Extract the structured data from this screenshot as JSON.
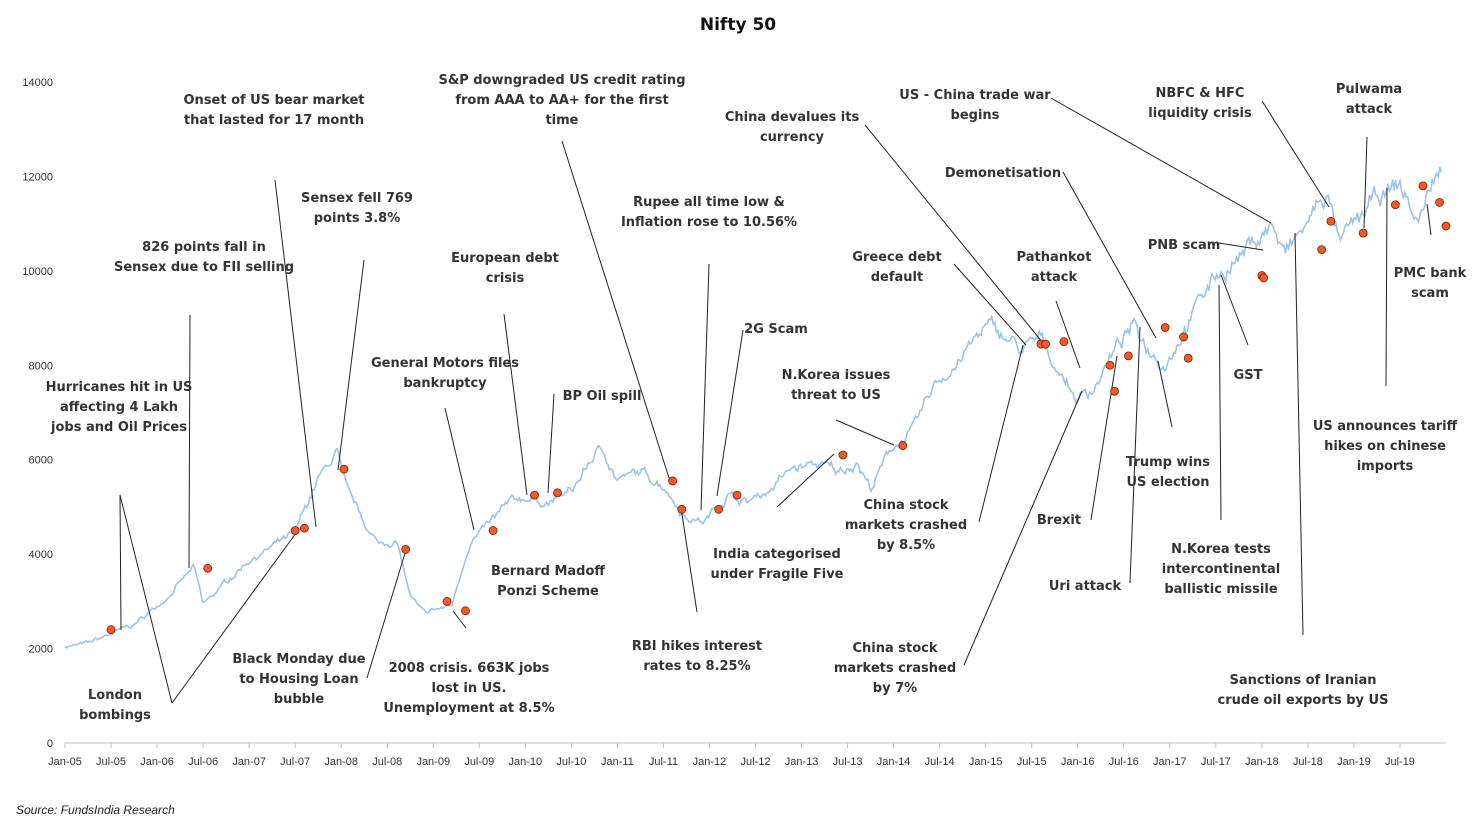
{
  "chart_data": {
    "type": "line",
    "title": "Nifty 50",
    "xlabel": "",
    "ylabel": "",
    "ylim": [
      0,
      14000
    ],
    "yticks": [
      "0",
      "2000",
      "4000",
      "6000",
      "8000",
      "10000",
      "12000",
      "14000"
    ],
    "xticks": [
      "Jan-05",
      "Jul-05",
      "Jan-06",
      "Jul-06",
      "Jan-07",
      "Jul-07",
      "Jan-08",
      "Jul-08",
      "Jan-09",
      "Jul-09",
      "Jan-10",
      "Jul-10",
      "Jan-11",
      "Jul-11",
      "Jan-12",
      "Jul-12",
      "Jan-13",
      "Jul-13",
      "Jan-14",
      "Jul-14",
      "Jan-15",
      "Jul-15",
      "Jan-16",
      "Jul-16",
      "Jan-17",
      "Jul-17",
      "Jan-18",
      "Jul-18",
      "Jan-19",
      "Jul-19"
    ],
    "grid": false,
    "legend": "none",
    "series": [
      {
        "color": "#9dc3e6",
        "x": [
          2005.0,
          2005.25,
          2005.5,
          2005.75,
          2006.0,
          2006.25,
          2006.4,
          2006.5,
          2006.75,
          2007.0,
          2007.2,
          2007.5,
          2007.75,
          2007.85,
          2007.95,
          2008.05,
          2008.2,
          2008.4,
          2008.6,
          2008.75,
          2008.9,
          2009.0,
          2009.2,
          2009.4,
          2009.6,
          2009.8,
          2010.0,
          2010.25,
          2010.5,
          2010.75,
          2010.85,
          2011.0,
          2011.25,
          2011.5,
          2011.75,
          2011.95,
          2012.2,
          2012.4,
          2012.6,
          2012.9,
          2013.2,
          2013.4,
          2013.6,
          2013.75,
          2014.0,
          2014.25,
          2014.45,
          2014.75,
          2015.0,
          2015.2,
          2015.4,
          2015.6,
          2015.8,
          2016.0,
          2016.15,
          2016.4,
          2016.6,
          2016.75,
          2016.95,
          2017.2,
          2017.5,
          2017.75,
          2018.0,
          2018.1,
          2018.25,
          2018.5,
          2018.7,
          2018.85,
          2019.0,
          2019.25,
          2019.5,
          2019.7,
          2019.85,
          2019.95
        ],
        "y": [
          2050,
          2100,
          2300,
          2500,
          2900,
          3400,
          3700,
          2900,
          3400,
          3900,
          4100,
          4400,
          5600,
          5800,
          6200,
          5300,
          4800,
          4200,
          4300,
          3100,
          2700,
          2800,
          2900,
          4300,
          4600,
          5000,
          5200,
          5100,
          5300,
          6100,
          6200,
          5600,
          5700,
          5500,
          4800,
          4700,
          5300,
          5100,
          5300,
          5800,
          5900,
          5700,
          6000,
          5400,
          6300,
          6700,
          7600,
          8200,
          8800,
          8600,
          8300,
          8500,
          7900,
          7300,
          7500,
          8300,
          8800,
          8400,
          8100,
          9000,
          9900,
          10300,
          10800,
          11000,
          10300,
          11000,
          11700,
          10500,
          10900,
          11500,
          11800,
          11000,
          11900,
          12100
        ]
      }
    ],
    "markers": [
      {
        "x": 2005.5,
        "y": 2400
      },
      {
        "x": 2006.55,
        "y": 3700
      },
      {
        "x": 2007.5,
        "y": 4500
      },
      {
        "x": 2007.6,
        "y": 4550
      },
      {
        "x": 2008.03,
        "y": 5800
      },
      {
        "x": 2008.7,
        "y": 4100
      },
      {
        "x": 2009.15,
        "y": 3000
      },
      {
        "x": 2009.35,
        "y": 2800
      },
      {
        "x": 2009.65,
        "y": 4500
      },
      {
        "x": 2010.1,
        "y": 5250
      },
      {
        "x": 2010.35,
        "y": 5300
      },
      {
        "x": 2011.6,
        "y": 5550
      },
      {
        "x": 2011.7,
        "y": 4950
      },
      {
        "x": 2012.1,
        "y": 4950
      },
      {
        "x": 2012.3,
        "y": 5250
      },
      {
        "x": 2013.45,
        "y": 6100
      },
      {
        "x": 2014.1,
        "y": 6300
      },
      {
        "x": 2015.6,
        "y": 8450
      },
      {
        "x": 2015.65,
        "y": 8450
      },
      {
        "x": 2015.85,
        "y": 8500
      },
      {
        "x": 2016.35,
        "y": 8000
      },
      {
        "x": 2016.4,
        "y": 7450
      },
      {
        "x": 2016.55,
        "y": 8200
      },
      {
        "x": 2016.95,
        "y": 8800
      },
      {
        "x": 2017.15,
        "y": 8600
      },
      {
        "x": 2017.2,
        "y": 8150
      },
      {
        "x": 2018.0,
        "y": 9900
      },
      {
        "x": 2018.02,
        "y": 9850
      },
      {
        "x": 2018.65,
        "y": 10450
      },
      {
        "x": 2018.75,
        "y": 11050
      },
      {
        "x": 2019.1,
        "y": 10800
      },
      {
        "x": 2019.45,
        "y": 11400
      },
      {
        "x": 2020.0,
        "y": 10950
      },
      {
        "x": 2020.25,
        "y": 11800
      },
      {
        "x": 2020.55,
        "y": 11450
      }
    ],
    "annotations": [
      {
        "text": "London\nbombings"
      },
      {
        "text": "Hurricanes hit in US\naffecting 4 Lakh\njobs and Oil Prices"
      },
      {
        "text": "826 points fall in\nSensex due to FII selling"
      },
      {
        "text": "Black Monday due\nto Housing Loan\nbubble"
      },
      {
        "text": "Onset of US bear market\nthat lasted for 17 month"
      },
      {
        "text": "Sensex fell 769\npoints 3.8%"
      },
      {
        "text": "2008 crisis. 663K jobs\nlost in US.\nUnemployment at 8.5%"
      },
      {
        "text": "Bernard Madoff\nPonzi Scheme"
      },
      {
        "text": "General Motors files\nbankruptcy"
      },
      {
        "text": "European debt\ncrisis"
      },
      {
        "text": "BP Oil spill"
      },
      {
        "text": "S&P downgraded US credit rating\nfrom AAA to AA+ for the first\ntime"
      },
      {
        "text": "RBI hikes interest\nrates to 8.25%"
      },
      {
        "text": "Rupee all time low &\nInflation rose to 10.56%"
      },
      {
        "text": "2G Scam"
      },
      {
        "text": "India categorised\nunder Fragile Five"
      },
      {
        "text": "N.Korea issues\nthreat to US"
      },
      {
        "text": "China devalues its\ncurrency"
      },
      {
        "text": "Greece debt\ndefault"
      },
      {
        "text": "China stock\nmarkets crashed\nby 8.5%"
      },
      {
        "text": "China stock\nmarkets crashed\nby 7%"
      },
      {
        "text": "Pathankot\nattack"
      },
      {
        "text": "Demonetisation"
      },
      {
        "text": "Brexit"
      },
      {
        "text": "Uri attack"
      },
      {
        "text": "Trump wins\nUS election"
      },
      {
        "text": "US - China trade war\nbegins"
      },
      {
        "text": "PNB scam"
      },
      {
        "text": "GST"
      },
      {
        "text": "N.Korea tests\nintercontinental\nballistic missile"
      },
      {
        "text": "Sanctions of Iranian\ncrude oil exports by US"
      },
      {
        "text": "NBFC & HFC\nliquidity crisis"
      },
      {
        "text": "Pulwama\nattack"
      },
      {
        "text": "PMC bank\nscam"
      },
      {
        "text": "US announces tariff\nhikes on chinese\nimports"
      }
    ]
  },
  "source_text": "Source: FundsIndia Research"
}
